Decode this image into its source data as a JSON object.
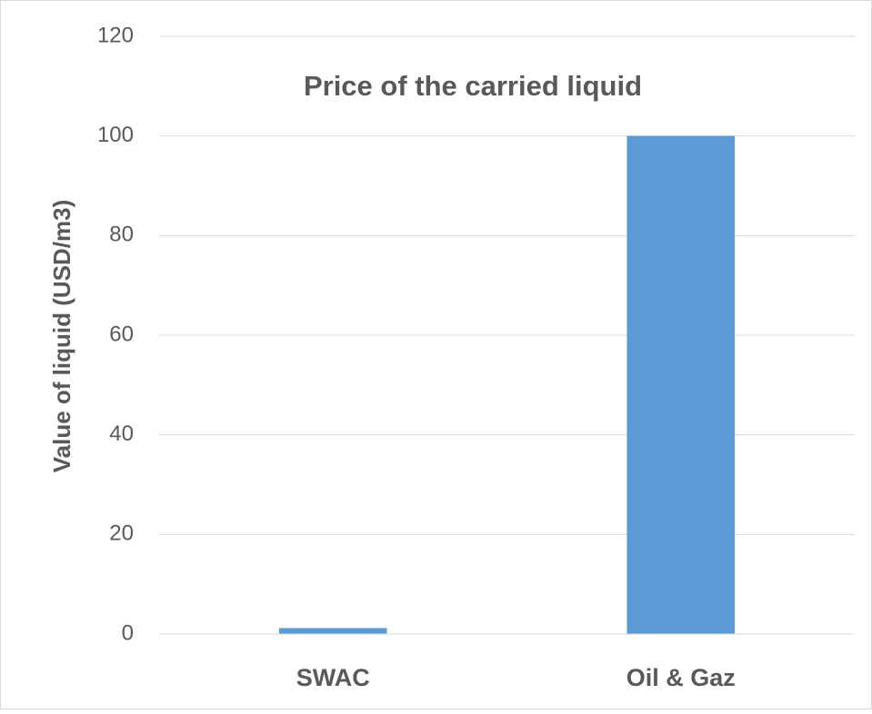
{
  "chart_data": {
    "type": "bar",
    "title": "Price of the carried liquid",
    "y_label": "Value of liquid (USD/m3)",
    "categories": [
      "SWAC",
      "Oil & Gaz"
    ],
    "values": [
      1.2,
      100
    ],
    "color": "#5b9bd5",
    "ylim": [
      0,
      120
    ],
    "yticks": [
      0,
      20,
      40,
      60,
      80,
      100,
      120
    ],
    "grid": true
  }
}
